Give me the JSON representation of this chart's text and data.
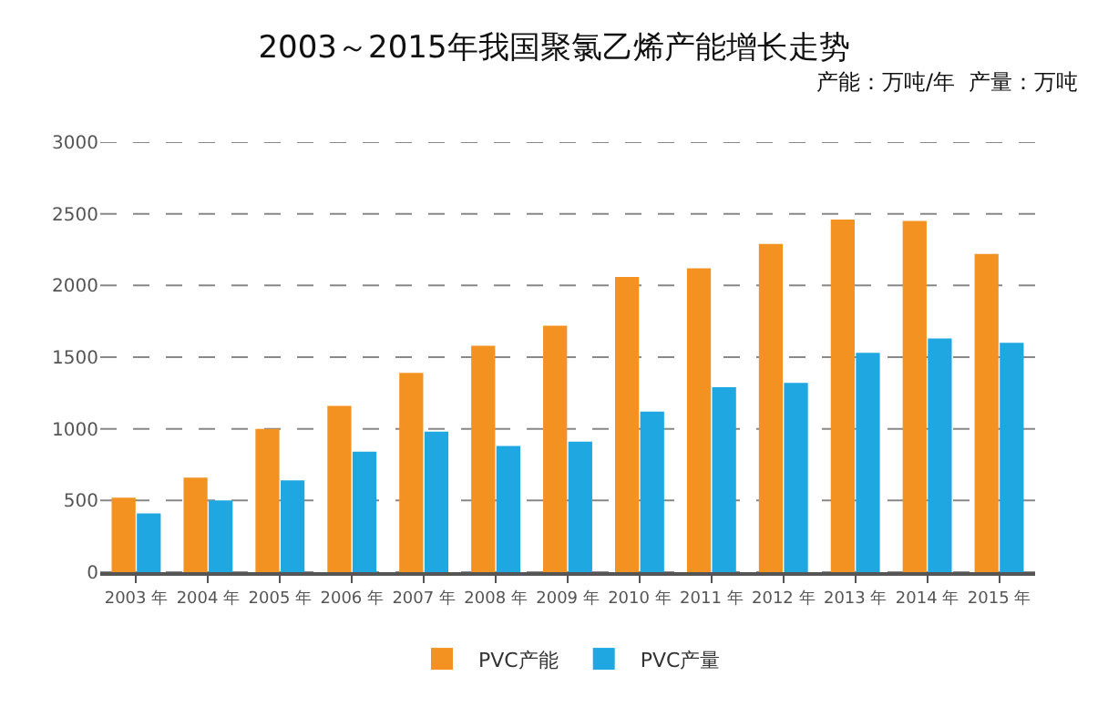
{
  "chart_data": {
    "type": "bar",
    "title": "2003～2015年我国聚氯乙烯产能增长走势",
    "subtitle": "产能：万吨/年  产量：万吨",
    "categories": [
      "2003 年",
      "2004 年",
      "2005 年",
      "2006 年",
      "2007 年",
      "2008 年",
      "2009 年",
      "2010 年",
      "2011 年",
      "2012 年",
      "2013 年",
      "2014 年",
      "2015 年"
    ],
    "series": [
      {
        "name": "PVC产能",
        "color": "#f39121",
        "values": [
          520,
          660,
          1000,
          1160,
          1390,
          1580,
          1720,
          2060,
          2120,
          2290,
          2460,
          2450,
          2220
        ]
      },
      {
        "name": "PVC产量",
        "color": "#1ea7e1",
        "values": [
          410,
          500,
          640,
          840,
          980,
          880,
          910,
          1120,
          1290,
          1320,
          1530,
          1630,
          1600
        ]
      }
    ],
    "ylim": [
      0,
      3000
    ],
    "yticks": [
      0,
      500,
      1000,
      1500,
      2000,
      2500,
      3000
    ],
    "grid": "y",
    "line_style": "dashed",
    "legend": "bottom"
  }
}
